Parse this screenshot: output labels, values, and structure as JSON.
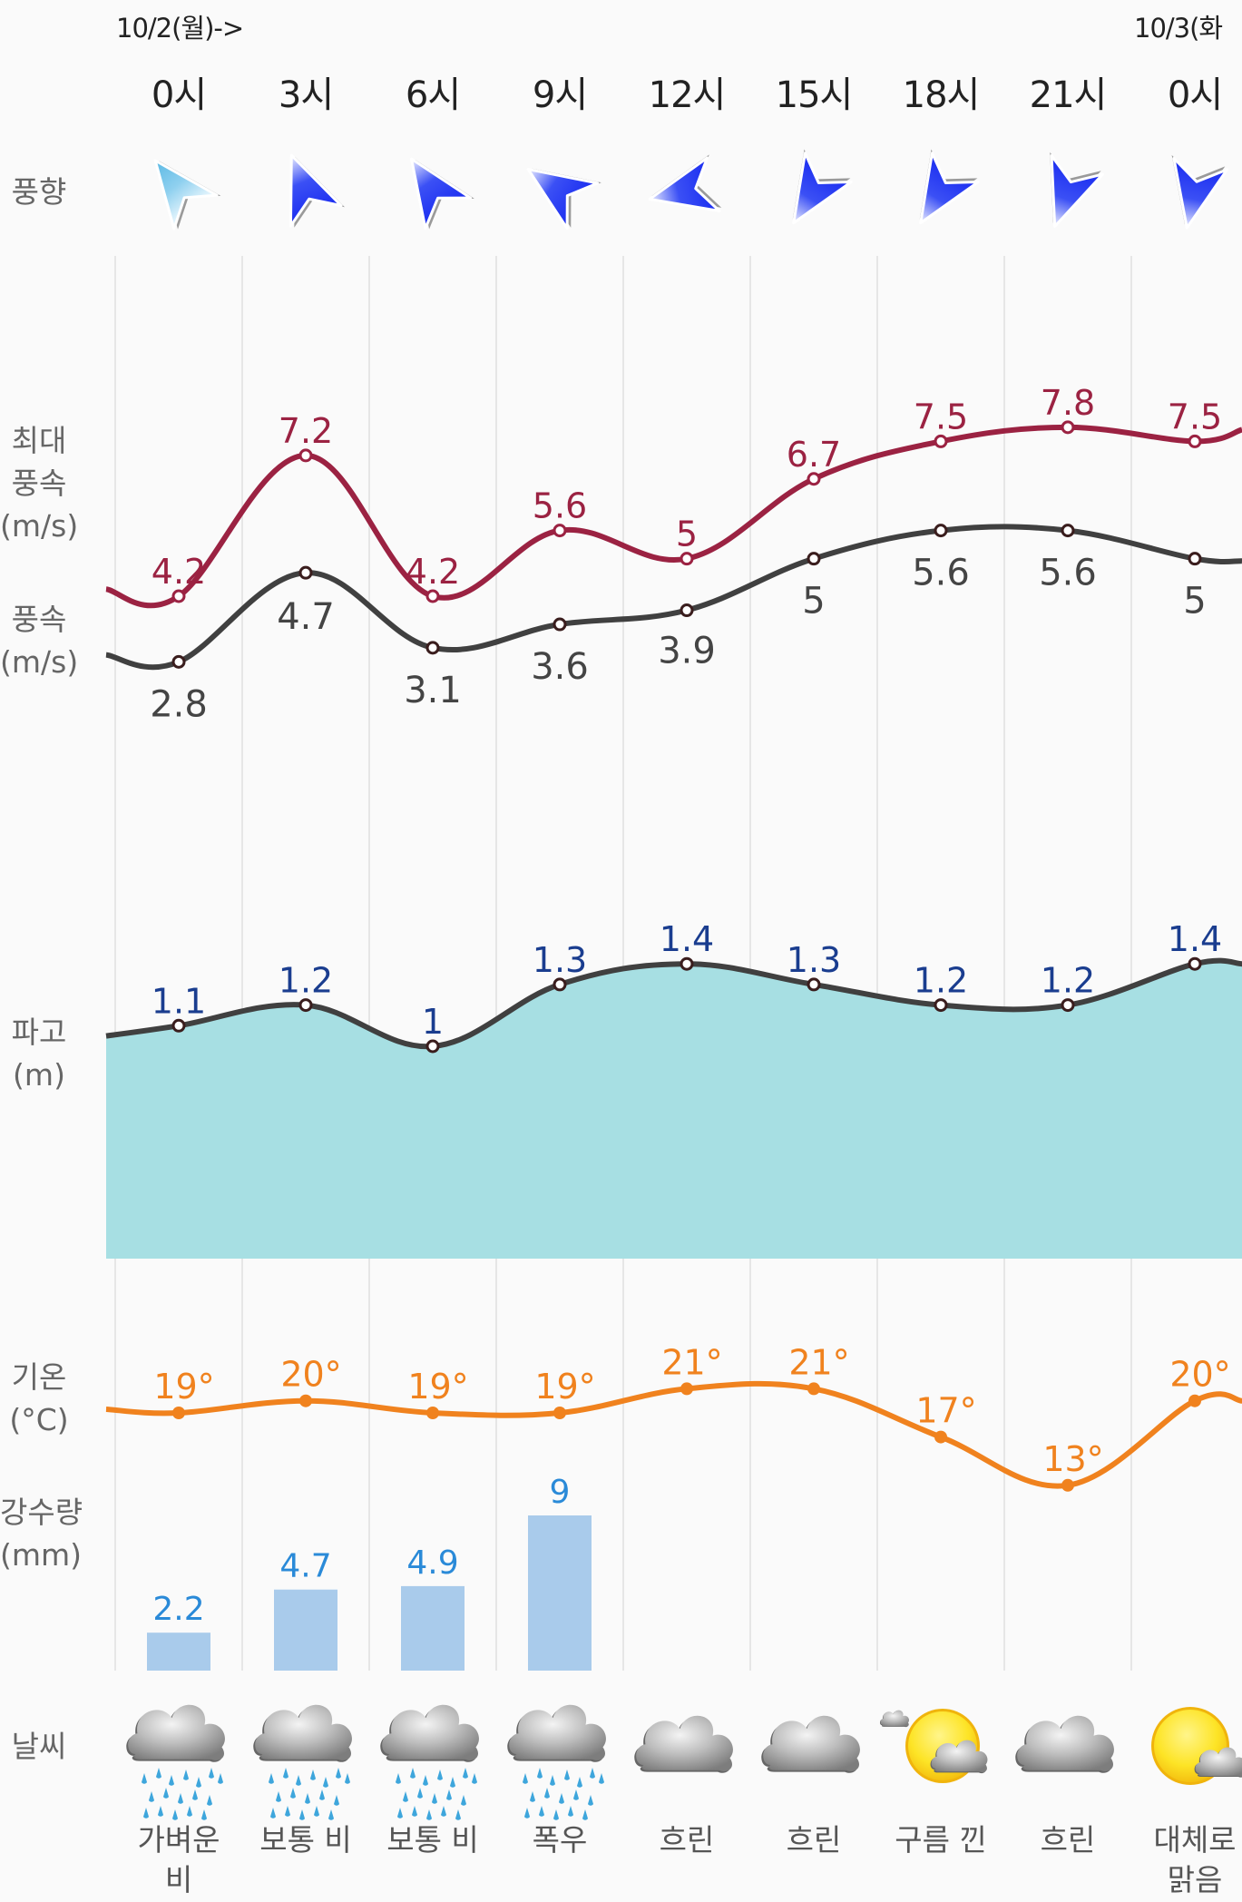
{
  "header": {
    "date_start": "10/2(월)->",
    "date_next": "10/3(화"
  },
  "row_labels": {
    "wind_direction": "풍향",
    "max_wind_1": "최대",
    "max_wind_2": "풍속",
    "max_wind_unit": "(m/s)",
    "wind_1": "풍속",
    "wind_unit": "(m/s)",
    "wave_1": "파고",
    "wave_unit": "(m)",
    "temp_1": "기온",
    "temp_unit": "(°C)",
    "precip_1": "강수량",
    "precip_unit": "(mm)",
    "weather": "날씨"
  },
  "colors": {
    "max_wind": "#9b2242",
    "wind": "#404040",
    "wave_line": "#404040",
    "wave_fill": "#a7dfe3",
    "wave_label": "#1a3d8f",
    "temperature": "#f0821e",
    "precip_bar": "#a9cbeb",
    "precip_label": "#2a8ad8",
    "grid": "#e6e6e6"
  },
  "chart_data": {
    "type": "line",
    "categories": [
      "0시",
      "3시",
      "6시",
      "9시",
      "12시",
      "15시",
      "18시",
      "21시",
      "0시"
    ],
    "wind_direction_deg": [
      -38,
      -22,
      -34,
      -56,
      -103,
      -148,
      -148,
      -160,
      -168
    ],
    "wind_direction_icons": [
      "arrow-light",
      "arrow",
      "arrow",
      "arrow",
      "arrow",
      "arrow",
      "arrow",
      "arrow",
      "arrow"
    ],
    "series": [
      {
        "name": "최대 풍속",
        "unit": "m/s",
        "values": [
          4.2,
          7.2,
          4.2,
          5.6,
          5,
          6.7,
          7.5,
          7.8,
          7.5
        ],
        "labels": [
          "4.2",
          "7.2",
          "4.2",
          "5.6",
          "5",
          "6.7",
          "7.5",
          "7.8",
          "7.5"
        ]
      },
      {
        "name": "풍속",
        "unit": "m/s",
        "values": [
          2.8,
          4.7,
          3.1,
          3.6,
          3.9,
          5,
          5.6,
          5.6,
          5
        ],
        "labels": [
          "2.8",
          "4.7",
          "3.1",
          "3.6",
          "3.9",
          "5",
          "5.6",
          "5.6",
          "5"
        ]
      },
      {
        "name": "파고",
        "unit": "m",
        "type": "area",
        "values": [
          1.1,
          1.2,
          1,
          1.3,
          1.4,
          1.3,
          1.2,
          1.2,
          1.4
        ],
        "labels": [
          "1.1",
          "1.2",
          "1",
          "1.3",
          "1.4",
          "1.3",
          "1.2",
          "1.2",
          "1.4"
        ]
      },
      {
        "name": "기온",
        "unit": "°C",
        "values": [
          19,
          20,
          19,
          19,
          21,
          21,
          17,
          13,
          20
        ],
        "labels": [
          "19°",
          "20°",
          "19°",
          "19°",
          "21°",
          "21°",
          "17°",
          "13°",
          "20°"
        ]
      },
      {
        "name": "강수량",
        "unit": "mm",
        "type": "bar",
        "values": [
          2.2,
          4.7,
          4.9,
          9,
          null,
          null,
          null,
          null,
          null
        ],
        "labels": [
          "2.2",
          "4.7",
          "4.9",
          "9",
          "",
          "",
          "",
          "",
          ""
        ]
      }
    ],
    "weather_icons": [
      "rain",
      "rain",
      "rain",
      "rain",
      "cloudy",
      "cloudy",
      "partly-cloudy",
      "cloudy",
      "mostly-sunny"
    ],
    "weather_labels": [
      "가벼운\n비",
      "보통 비",
      "보통 비",
      "폭우",
      "흐린",
      "흐린",
      "구름 낀",
      "흐린",
      "대체로\n맑음"
    ],
    "grid": true
  }
}
